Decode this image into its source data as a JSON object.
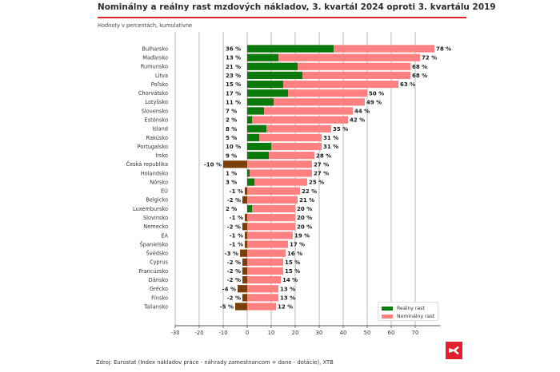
{
  "header": {
    "title": "Nominálny a reálny rast mzdových nákladov, 3. kvartál 2024 oproti 3. kvartálu 2019",
    "subtitle": "Hodnoty v percentách, kumulatívne"
  },
  "footer": {
    "source": "Zdroj: Eurostat (Index nákladov práce - náhrady zamestnancom + dane - dotácie), XTB",
    "logo": "xtb-logo-icon"
  },
  "colors": {
    "real_positive": "#0a7a0a",
    "real_negative": "#7b3f0b",
    "nominal": "#ff8080",
    "accent": "#d6262c"
  },
  "chart_data": {
    "type": "bar",
    "orientation": "horizontal",
    "title": "Nominálny a reálny rast mzdových nákladov, 3. kvartál 2024 oproti 3. kvartálu 2019",
    "subtitle": "Hodnoty v percentách, kumulatívne",
    "xlabel": "",
    "ylabel": "",
    "xlim": [
      -30,
      80
    ],
    "xticks": [
      -30,
      -20,
      -10,
      0,
      10,
      20,
      30,
      40,
      50,
      60,
      70
    ],
    "grid": "vertical",
    "legend_position": "bottom-right",
    "value_suffix": " %",
    "categories": [
      "Bulharsko",
      "Maďarsko",
      "Rumunsko",
      "Litva",
      "Poľsko",
      "Chorvátsko",
      "Lotyšsko",
      "Slovensko",
      "Estónsko",
      "Island",
      "Rakúsko",
      "Portugalsko",
      "Írsko",
      "Česká republika",
      "Holandsko",
      "Nórsko",
      "EÚ",
      "Belgicko",
      "Luxembursko",
      "Slovinsko",
      "Nemecko",
      "EA",
      "Španielsko",
      "Švédsko",
      "Cyprus",
      "Francúzsko",
      "Dánsko",
      "Grécko",
      "Fínsko",
      "Taliansko"
    ],
    "series": [
      {
        "name": "Reálny rast",
        "values": [
          36,
          13,
          21,
          23,
          15,
          17,
          11,
          7,
          2,
          8,
          5,
          10,
          9,
          -10,
          1,
          3,
          -1,
          -2,
          2,
          -1,
          -2,
          -1,
          -1,
          -3,
          -2,
          -2,
          -2,
          -4,
          -2,
          -5
        ]
      },
      {
        "name": "Nominálny rast",
        "values": [
          78,
          72,
          68,
          68,
          63,
          50,
          49,
          44,
          42,
          35,
          31,
          31,
          28,
          27,
          27,
          25,
          22,
          21,
          20,
          20,
          20,
          19,
          17,
          16,
          15,
          15,
          14,
          13,
          13,
          12
        ]
      }
    ]
  }
}
